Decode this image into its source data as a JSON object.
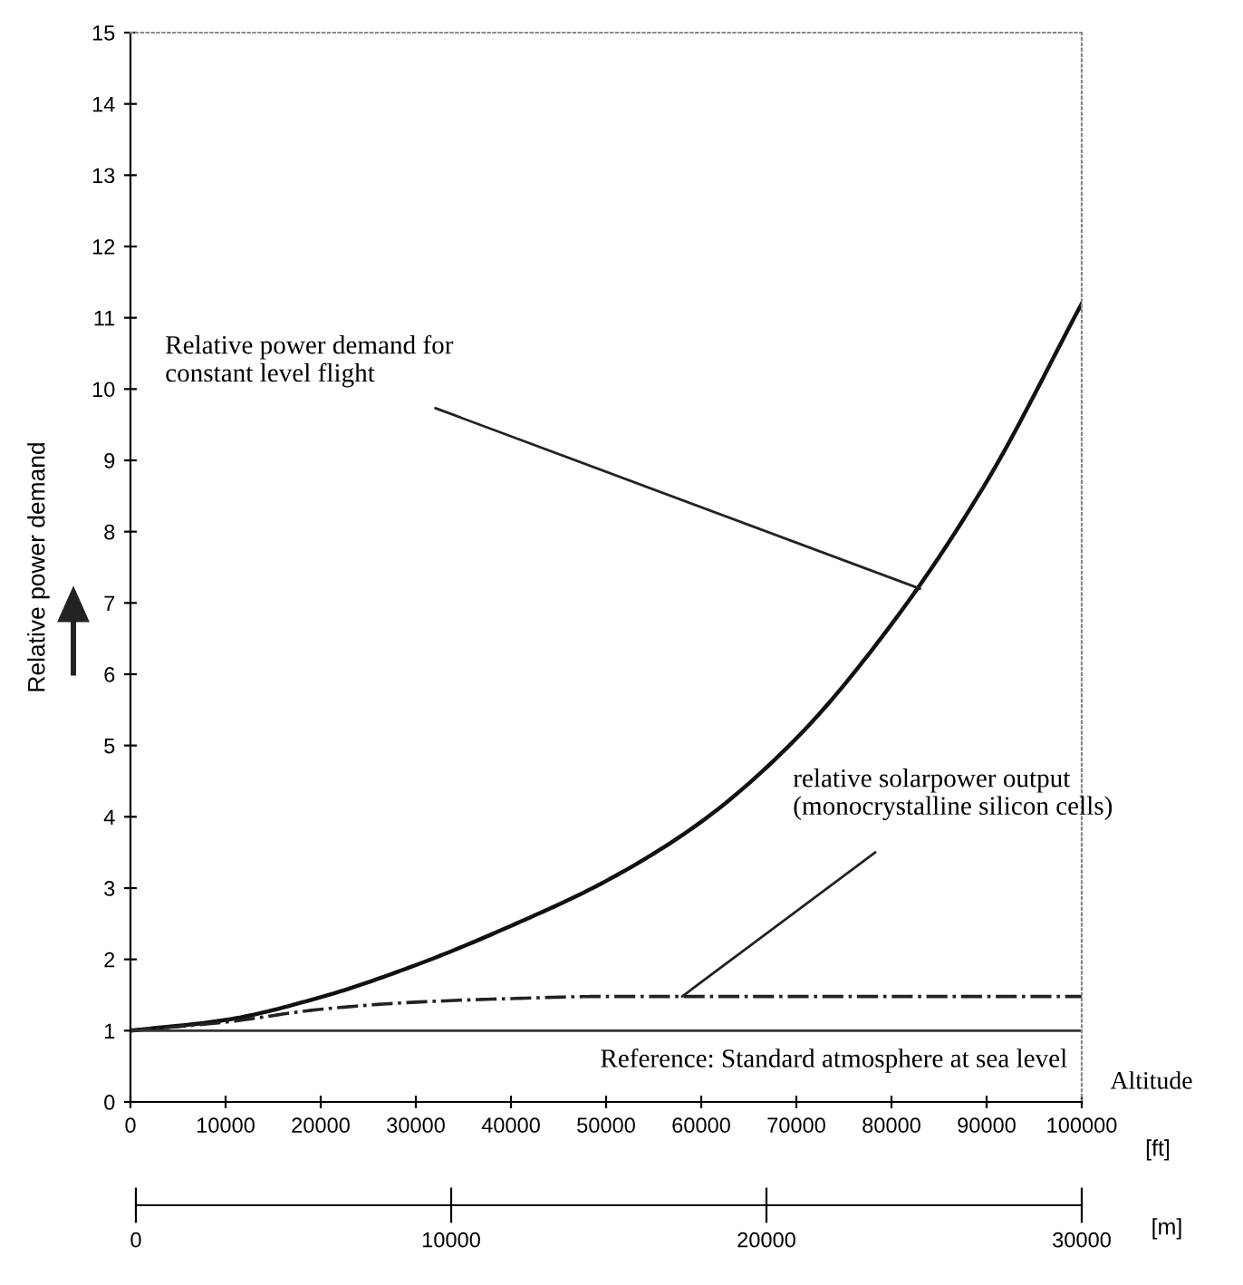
{
  "chart_data": {
    "type": "line",
    "ylabel": "Relative power demand",
    "xlabel": "[ft]",
    "x2label": "[m]",
    "x": [
      0,
      10000,
      20000,
      30000,
      40000,
      50000,
      60000,
      70000,
      80000,
      90000,
      100000
    ],
    "series": [
      {
        "color": "#111111",
        "line_style": "solid",
        "values": [
          1.0,
          1.15,
          1.47,
          1.92,
          2.47,
          3.1,
          3.93,
          5.1,
          6.7,
          8.7,
          11.2
        ]
      },
      {
        "color": "#222222",
        "line_style": "dashdot",
        "values": [
          1.0,
          1.12,
          1.3,
          1.4,
          1.45,
          1.48,
          1.48,
          1.48,
          1.48,
          1.48,
          1.48
        ]
      }
    ],
    "xlim": [
      0,
      100000
    ],
    "xticks": [
      0,
      10000,
      20000,
      30000,
      40000,
      50000,
      60000,
      70000,
      80000,
      90000,
      100000
    ],
    "ylim": [
      0,
      15
    ],
    "yticks": [
      0,
      1,
      2,
      3,
      4,
      5,
      6,
      7,
      8,
      9,
      10,
      11,
      12,
      13,
      14,
      15
    ],
    "x2lim": [
      0,
      30000
    ],
    "x2ticks": [
      0,
      10000,
      20000,
      30000
    ],
    "ref_lines": [
      {
        "axis": "y",
        "value": 1,
        "label": "Reference: Standard atmosphere at sea level",
        "color": "#333333"
      }
    ],
    "annotations": [
      {
        "text": "Relative power demand for\nconstant level flight",
        "x": 83000,
        "y": 7.2
      },
      {
        "text": "relative solarpower output\n(monocrystalline silicon cells)",
        "x": 58000,
        "y": 1.48
      },
      "Altitude"
    ],
    "grid": false,
    "legend": false,
    "marker": "none"
  }
}
